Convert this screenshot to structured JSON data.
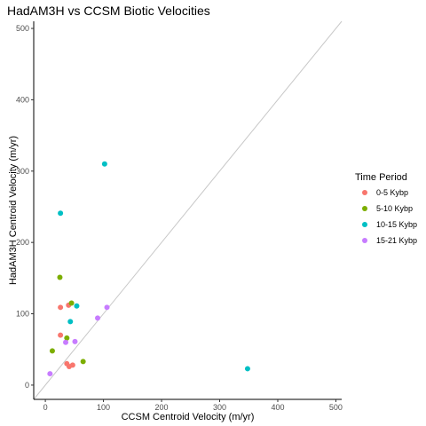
{
  "chart_data": {
    "type": "scatter",
    "title": "HadAM3H vs CCSM Biotic Velocities",
    "xlabel": "CCSM Centroid Velocity (m/yr)",
    "ylabel": "HadAM3H Centroid Velocity (m/yr)",
    "xlim": [
      -20,
      510
    ],
    "ylim": [
      -20,
      510
    ],
    "xticks": [
      0,
      100,
      200,
      300,
      400,
      500
    ],
    "yticks": [
      0,
      100,
      200,
      300,
      400,
      500
    ],
    "xtick_labels": [
      "0",
      "100",
      "200",
      "300",
      "400",
      "500"
    ],
    "ytick_labels": [
      "0",
      "100",
      "200",
      "300",
      "400",
      "500"
    ],
    "grid": false,
    "reference_line": "y = x",
    "legend": {
      "title": "Time Period",
      "placement": "right",
      "entries": [
        "0-5 Kybp",
        "5-10 Kybp",
        "10-15 Kybp",
        "15-21 Kybp"
      ]
    },
    "series": [
      {
        "name": "0-5 Kybp",
        "color": "#F8766D",
        "points": [
          [
            26,
            109
          ],
          [
            40,
            112
          ],
          [
            26,
            70
          ],
          [
            37,
            30
          ],
          [
            41,
            26
          ],
          [
            47,
            28
          ]
        ]
      },
      {
        "name": "5-10 Kybp",
        "color": "#7CAE00",
        "points": [
          [
            25,
            151
          ],
          [
            45,
            115
          ],
          [
            37,
            66
          ],
          [
            12,
            48
          ],
          [
            65,
            33
          ]
        ]
      },
      {
        "name": "10-15 Kybp",
        "color": "#00BFC4",
        "points": [
          [
            102,
            310
          ],
          [
            26,
            241
          ],
          [
            54,
            111
          ],
          [
            43,
            89
          ],
          [
            348,
            23
          ]
        ]
      },
      {
        "name": "15-21 Kybp",
        "color": "#C77CFF",
        "points": [
          [
            106,
            109
          ],
          [
            90,
            94
          ],
          [
            51,
            61
          ],
          [
            35,
            60
          ],
          [
            8,
            16
          ]
        ]
      }
    ]
  }
}
